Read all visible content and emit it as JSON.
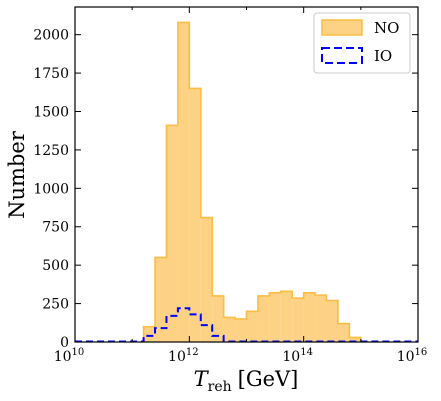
{
  "chart_data": {
    "type": "histogram",
    "xlabel_main": "T",
    "xlabel_sub": "reh",
    "xlabel_unit": "[GeV]",
    "ylabel": "Number",
    "x_scale": "log10",
    "xlim_exponent": [
      10,
      16
    ],
    "ylim": [
      0,
      2180
    ],
    "xtick_base": "10",
    "xticks": [
      {
        "base": "10",
        "exp": "10"
      },
      {
        "base": "10",
        "exp": "12"
      },
      {
        "base": "10",
        "exp": "14"
      },
      {
        "base": "10",
        "exp": "16"
      }
    ],
    "yticks": [
      "0",
      "250",
      "500",
      "750",
      "1000",
      "1250",
      "1500",
      "1750",
      "2000"
    ],
    "bin_width_exponent": 0.2,
    "bin_start_exponent": 11.2,
    "legend_position": "upper right",
    "series": [
      {
        "name": "NO",
        "style": "filled",
        "fill": "#fdd284",
        "stroke": "#fbbd44",
        "values": [
          100,
          550,
          1410,
          2080,
          1650,
          810,
          300,
          160,
          150,
          200,
          300,
          320,
          330,
          285,
          320,
          305,
          270,
          120,
          30
        ]
      },
      {
        "name": "IO",
        "style": "dashed-step",
        "stroke": "#0000ff",
        "values": [
          40,
          90,
          170,
          220,
          180,
          110,
          40
        ]
      }
    ]
  }
}
